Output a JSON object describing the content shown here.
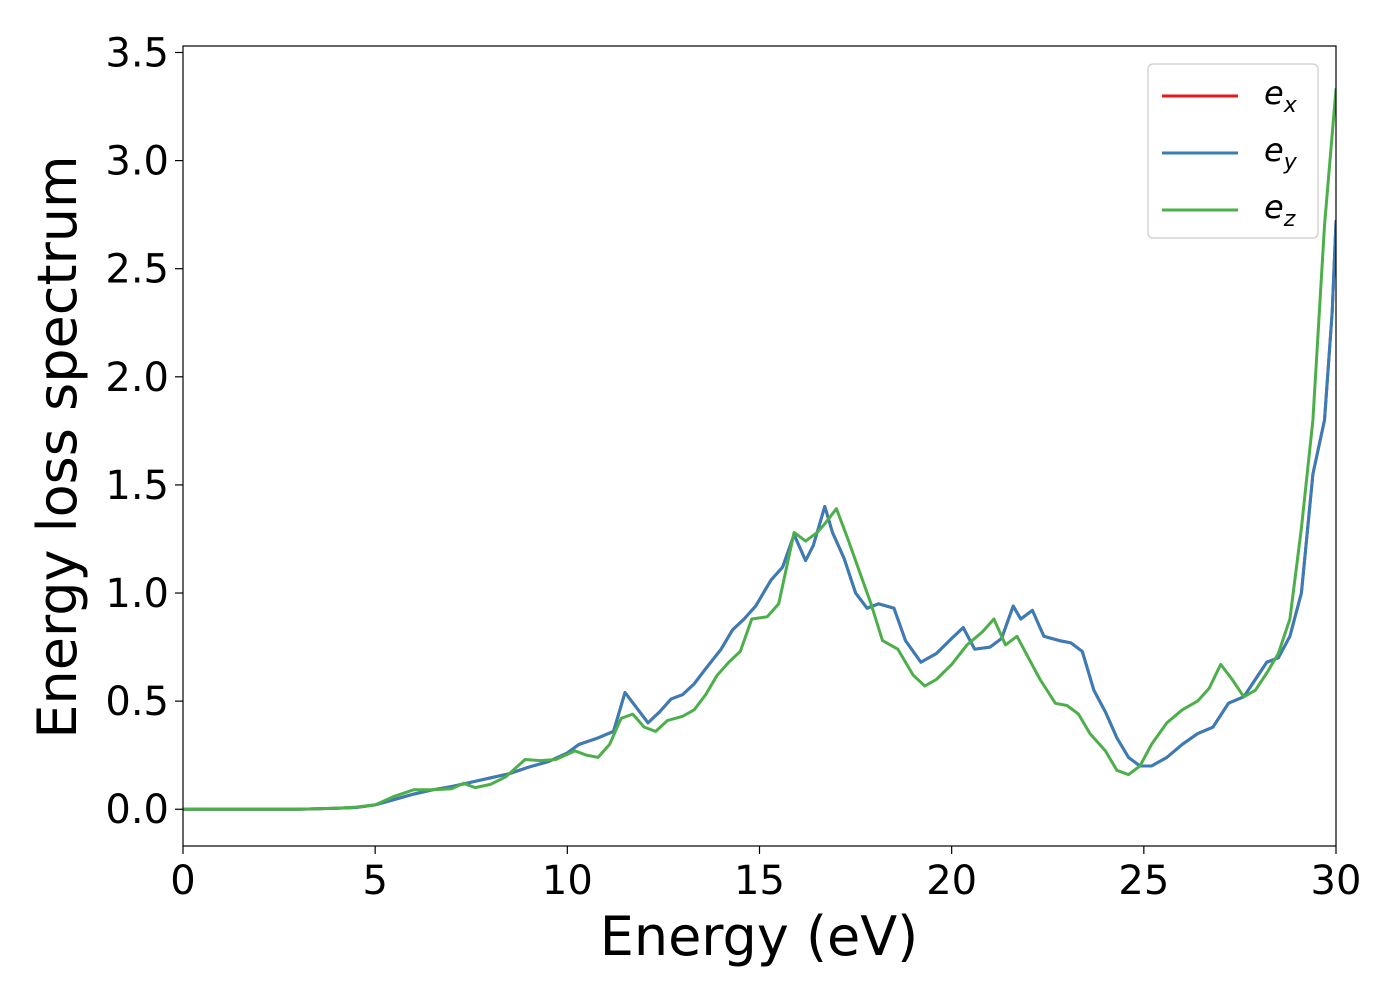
{
  "chart_data": {
    "type": "line",
    "xlabel": "Energy (eV)",
    "ylabel": "Energy loss spectrum",
    "xlim": [
      0,
      30
    ],
    "ylim": [
      -0.17,
      3.53
    ],
    "xticks": [
      0,
      5,
      10,
      15,
      20,
      25,
      30
    ],
    "xtick_labels": [
      "0",
      "5",
      "10",
      "15",
      "20",
      "25",
      "30"
    ],
    "yticks": [
      0.0,
      0.5,
      1.0,
      1.5,
      2.0,
      2.5,
      3.0,
      3.5
    ],
    "ytick_labels": [
      "0.0",
      "0.5",
      "1.0",
      "1.5",
      "2.0",
      "2.5",
      "3.0",
      "3.5"
    ],
    "grid": false,
    "legend_position": "top-right",
    "series": [
      {
        "legend_base": "e",
        "legend_sub": "x",
        "color": "#e41a1c",
        "x": [
          0,
          1,
          2,
          3,
          4,
          4.5,
          5,
          5.5,
          6,
          6.5,
          7,
          7.5,
          8,
          8.5,
          9,
          9.5,
          10,
          10.3,
          10.8,
          11.2,
          11.5,
          11.8,
          12.1,
          12.4,
          12.7,
          13,
          13.3,
          13.6,
          14,
          14.3,
          14.6,
          14.9,
          15.3,
          15.6,
          15.9,
          16.2,
          16.4,
          16.7,
          16.9,
          17.2,
          17.5,
          17.8,
          18.1,
          18.5,
          18.8,
          19.2,
          19.6,
          20,
          20.3,
          20.6,
          21,
          21.3,
          21.6,
          21.8,
          22.1,
          22.4,
          22.8,
          23.1,
          23.4,
          23.7,
          24,
          24.3,
          24.6,
          24.9,
          25.2,
          25.6,
          26,
          26.4,
          26.8,
          27.2,
          27.6,
          27.9,
          28.2,
          28.5,
          28.8,
          29.1,
          29.4,
          29.7,
          29.9,
          30
        ],
        "y": [
          0,
          0,
          0,
          0,
          0.005,
          0.008,
          0.02,
          0.045,
          0.07,
          0.09,
          0.105,
          0.125,
          0.145,
          0.165,
          0.195,
          0.22,
          0.26,
          0.3,
          0.33,
          0.36,
          0.54,
          0.47,
          0.4,
          0.45,
          0.51,
          0.53,
          0.58,
          0.65,
          0.74,
          0.83,
          0.88,
          0.94,
          1.06,
          1.12,
          1.27,
          1.15,
          1.22,
          1.4,
          1.28,
          1.16,
          1.0,
          0.93,
          0.95,
          0.93,
          0.78,
          0.68,
          0.72,
          0.79,
          0.84,
          0.74,
          0.75,
          0.79,
          0.94,
          0.88,
          0.92,
          0.8,
          0.78,
          0.77,
          0.73,
          0.55,
          0.45,
          0.33,
          0.24,
          0.2,
          0.2,
          0.24,
          0.3,
          0.35,
          0.38,
          0.49,
          0.52,
          0.6,
          0.68,
          0.7,
          0.8,
          1.0,
          1.55,
          1.8,
          2.3,
          2.72
        ]
      },
      {
        "legend_base": "e",
        "legend_sub": "y",
        "color": "#377eb8",
        "x": [
          0,
          1,
          2,
          3,
          4,
          4.5,
          5,
          5.5,
          6,
          6.5,
          7,
          7.5,
          8,
          8.5,
          9,
          9.5,
          10,
          10.3,
          10.8,
          11.2,
          11.5,
          11.8,
          12.1,
          12.4,
          12.7,
          13,
          13.3,
          13.6,
          14,
          14.3,
          14.6,
          14.9,
          15.3,
          15.6,
          15.9,
          16.2,
          16.4,
          16.7,
          16.9,
          17.2,
          17.5,
          17.8,
          18.1,
          18.5,
          18.8,
          19.2,
          19.6,
          20,
          20.3,
          20.6,
          21,
          21.3,
          21.6,
          21.8,
          22.1,
          22.4,
          22.8,
          23.1,
          23.4,
          23.7,
          24,
          24.3,
          24.6,
          24.9,
          25.2,
          25.6,
          26,
          26.4,
          26.8,
          27.2,
          27.6,
          27.9,
          28.2,
          28.5,
          28.8,
          29.1,
          29.4,
          29.7,
          29.9,
          30
        ],
        "y": [
          0,
          0,
          0,
          0,
          0.005,
          0.008,
          0.02,
          0.045,
          0.07,
          0.09,
          0.105,
          0.125,
          0.145,
          0.165,
          0.195,
          0.22,
          0.26,
          0.3,
          0.33,
          0.36,
          0.54,
          0.47,
          0.4,
          0.45,
          0.51,
          0.53,
          0.58,
          0.65,
          0.74,
          0.83,
          0.88,
          0.94,
          1.06,
          1.12,
          1.27,
          1.15,
          1.22,
          1.4,
          1.28,
          1.16,
          1.0,
          0.93,
          0.95,
          0.93,
          0.78,
          0.68,
          0.72,
          0.79,
          0.84,
          0.74,
          0.75,
          0.79,
          0.94,
          0.88,
          0.92,
          0.8,
          0.78,
          0.77,
          0.73,
          0.55,
          0.45,
          0.33,
          0.24,
          0.2,
          0.2,
          0.24,
          0.3,
          0.35,
          0.38,
          0.49,
          0.52,
          0.6,
          0.68,
          0.7,
          0.8,
          1.0,
          1.55,
          1.8,
          2.3,
          2.72
        ]
      },
      {
        "legend_base": "e",
        "legend_sub": "z",
        "color": "#4daf4a",
        "x": [
          0,
          1,
          2,
          3,
          4,
          4.5,
          5,
          5.5,
          6,
          6.5,
          7,
          7.3,
          7.6,
          8,
          8.4,
          8.9,
          9.3,
          9.7,
          10.2,
          10.5,
          10.8,
          11.1,
          11.4,
          11.7,
          12,
          12.3,
          12.6,
          13,
          13.3,
          13.6,
          13.9,
          14.2,
          14.5,
          14.8,
          15.2,
          15.5,
          15.9,
          16.2,
          16.5,
          16.7,
          17,
          17.3,
          17.6,
          17.9,
          18.2,
          18.6,
          19,
          19.3,
          19.6,
          20,
          20.4,
          20.8,
          21.1,
          21.4,
          21.7,
          22,
          22.3,
          22.7,
          23,
          23.3,
          23.6,
          24,
          24.3,
          24.6,
          24.9,
          25.2,
          25.6,
          26,
          26.4,
          26.7,
          27,
          27.3,
          27.6,
          27.9,
          28.2,
          28.5,
          28.8,
          29.1,
          29.4,
          29.7,
          30
        ],
        "y": [
          0,
          0,
          0,
          0,
          0.005,
          0.01,
          0.02,
          0.06,
          0.09,
          0.09,
          0.095,
          0.12,
          0.1,
          0.115,
          0.15,
          0.23,
          0.225,
          0.23,
          0.27,
          0.25,
          0.24,
          0.3,
          0.42,
          0.44,
          0.38,
          0.36,
          0.41,
          0.43,
          0.46,
          0.53,
          0.62,
          0.68,
          0.73,
          0.88,
          0.89,
          0.95,
          1.28,
          1.24,
          1.28,
          1.32,
          1.39,
          1.25,
          1.1,
          0.95,
          0.78,
          0.74,
          0.62,
          0.57,
          0.6,
          0.67,
          0.76,
          0.82,
          0.88,
          0.76,
          0.8,
          0.7,
          0.6,
          0.49,
          0.48,
          0.44,
          0.35,
          0.27,
          0.18,
          0.16,
          0.2,
          0.3,
          0.4,
          0.46,
          0.5,
          0.56,
          0.67,
          0.6,
          0.52,
          0.55,
          0.63,
          0.72,
          0.88,
          1.3,
          1.8,
          2.7,
          3.33
        ]
      }
    ]
  }
}
